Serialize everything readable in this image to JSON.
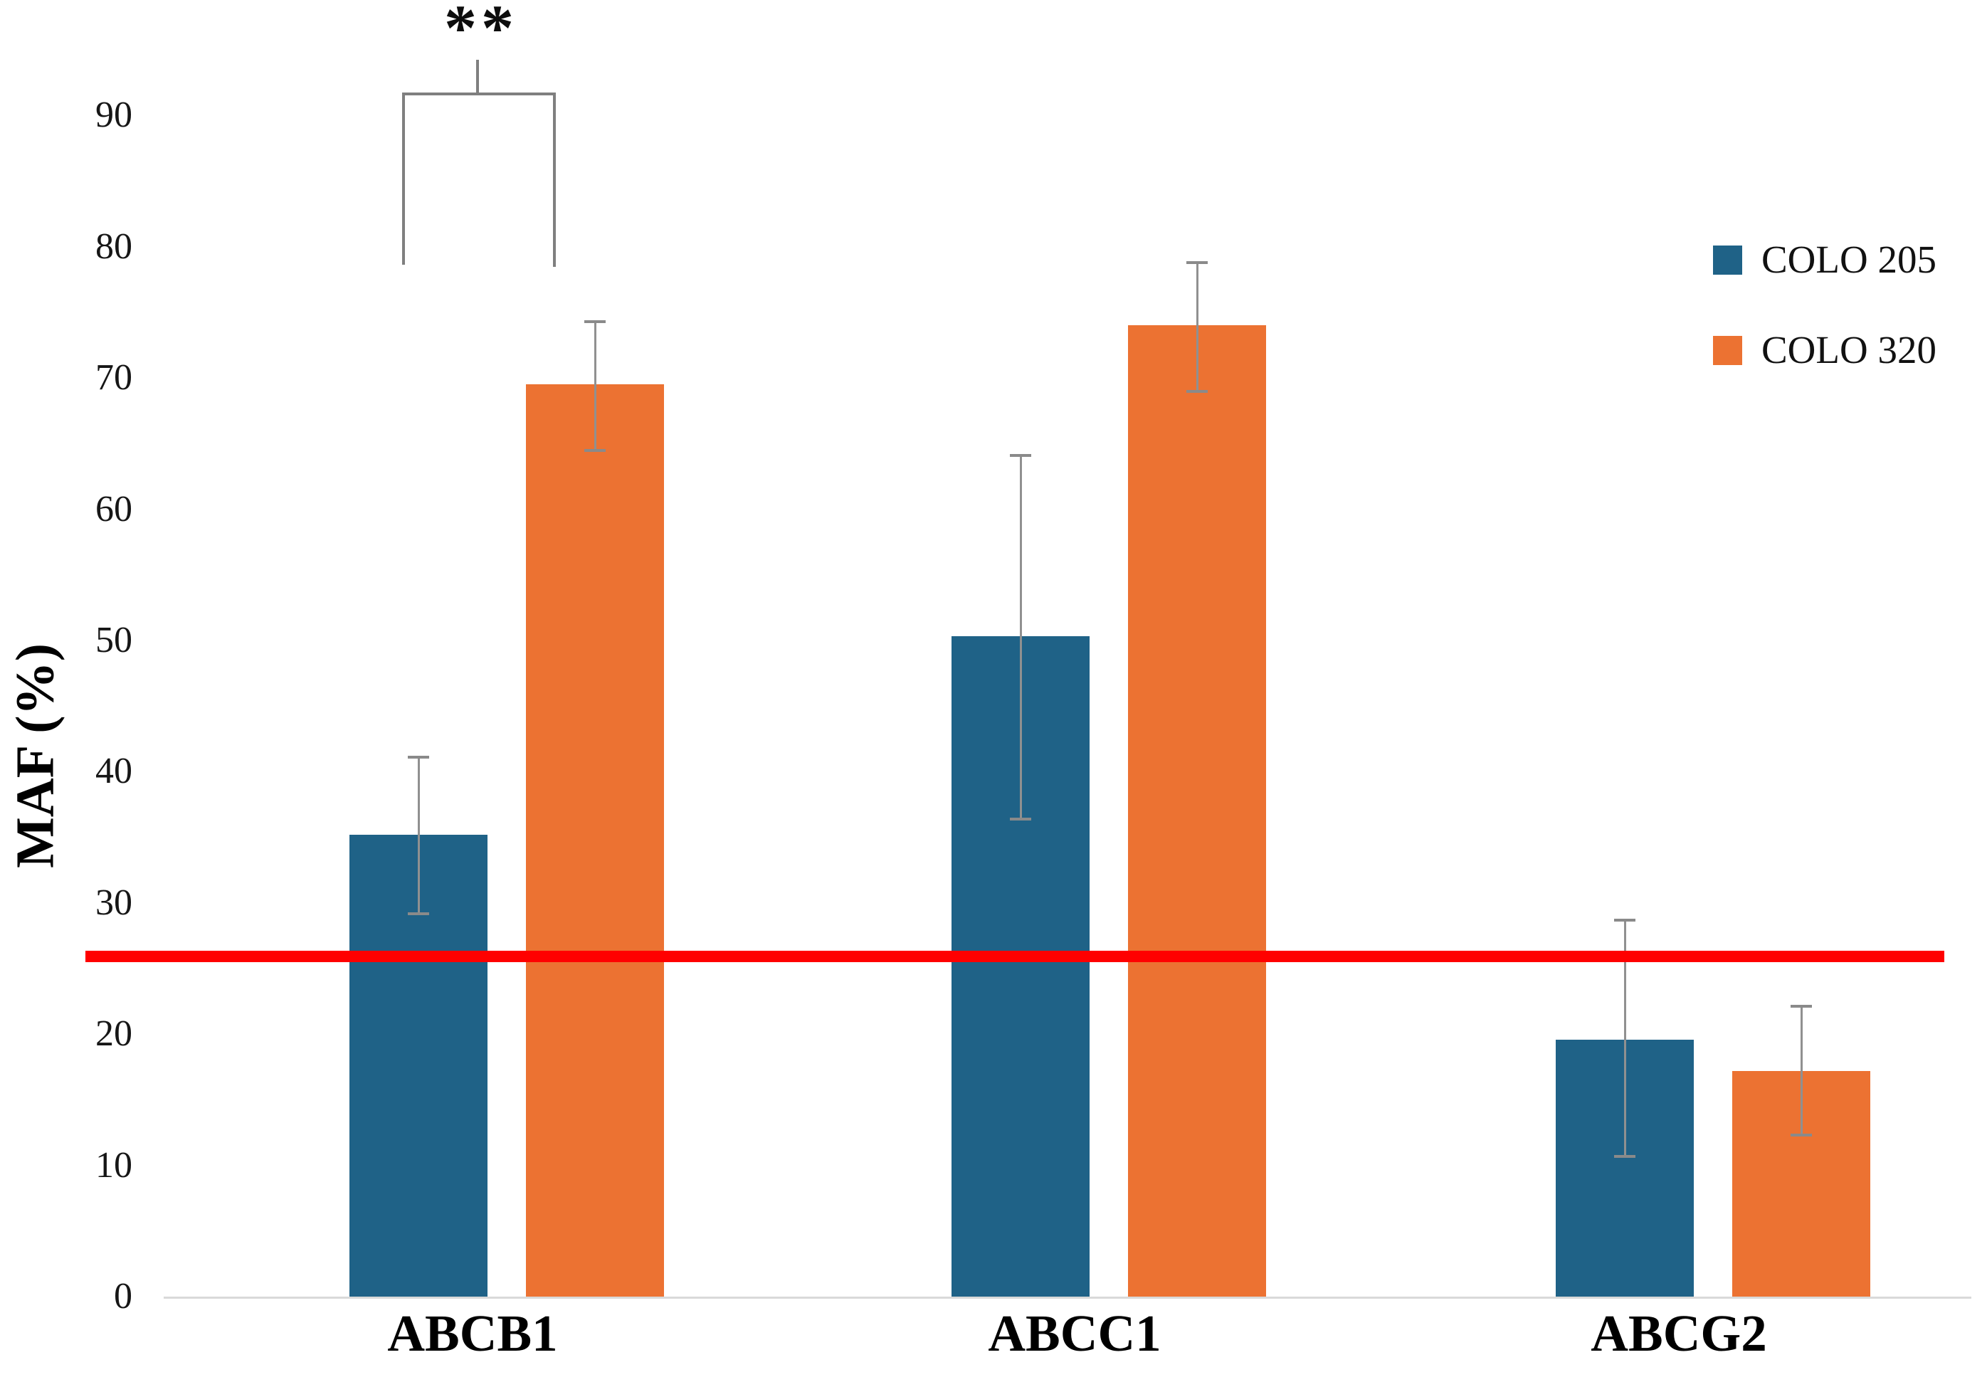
{
  "chart_data": {
    "type": "bar",
    "title": "",
    "ylabel": "MAF (%)",
    "xlabel": "",
    "ylim": [
      0,
      90
    ],
    "yticks": [
      0,
      10,
      20,
      30,
      40,
      50,
      60,
      70,
      80,
      90
    ],
    "grid": false,
    "legend_position": "top-right",
    "categories": [
      "ABCB1",
      "ABCC1",
      "ABCG2"
    ],
    "series": [
      {
        "name": "COLO 205",
        "color": "#1F6287",
        "values": [
          35.2,
          50.3,
          19.6
        ],
        "err_up": [
          5.9,
          13.8,
          9.1
        ],
        "err_down": [
          6.0,
          13.9,
          8.9
        ]
      },
      {
        "name": "COLO 320",
        "color": "#EC7232",
        "values": [
          69.5,
          74.0,
          17.2
        ],
        "err_up": [
          4.8,
          4.8,
          4.9
        ],
        "err_down": [
          5.0,
          5.0,
          4.9
        ]
      }
    ],
    "reference_line": {
      "value": 25.9,
      "color": "#FF0000"
    },
    "significance": {
      "label": "**",
      "category": "ABCB1",
      "between": [
        "COLO 205",
        "COLO 320"
      ]
    }
  }
}
